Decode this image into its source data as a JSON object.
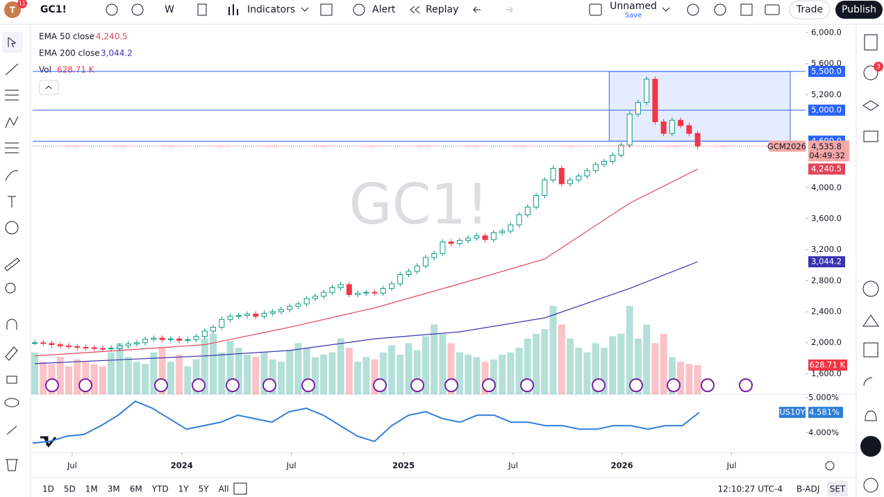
{
  "toolbar": {
    "avatar_badge": "11",
    "symbol": "GC1!",
    "interval": "W",
    "indicators": "Indicators",
    "alert": "Alert",
    "replay": "Replay",
    "layout_name": "Unnamed",
    "save": "Save",
    "trade": "Trade",
    "publish": "Publish"
  },
  "watermark": "GC1!",
  "side_badge": "3",
  "chart": {
    "type": "candlestick",
    "closes": [
      2000,
      1990,
      1975,
      1960,
      1950,
      1940,
      1935,
      1925,
      1920,
      1930,
      1960,
      1985,
      2000,
      2045,
      2060,
      2040,
      2050,
      2030,
      2040,
      2080,
      2150,
      2200,
      2300,
      2340,
      2350,
      2370,
      2340,
      2380,
      2400,
      2430,
      2470,
      2500,
      2570,
      2600,
      2650,
      2710,
      2750,
      2620,
      2640,
      2650,
      2640,
      2700,
      2760,
      2880,
      2920,
      2990,
      3100,
      3150,
      3300,
      3280,
      3320,
      3350,
      3380,
      3330,
      3420,
      3440,
      3520,
      3650,
      3750,
      3900,
      4100,
      4250,
      4050,
      4100,
      4150,
      4220,
      4300,
      4340,
      4420,
      4550,
      4950,
      5100,
      5400,
      4850,
      4700,
      4870,
      4800,
      4700,
      4535.8
    ],
    "volume": [
      900,
      700,
      650,
      800,
      600,
      750,
      700,
      650,
      600,
      900,
      1100,
      800,
      700,
      650,
      900,
      1000,
      700,
      850,
      600,
      750,
      1200,
      1300,
      900,
      1150,
      1000,
      850,
      800,
      900,
      750,
      700,
      950,
      1100,
      1000,
      800,
      850,
      900,
      1200,
      1000,
      700,
      800,
      750,
      900,
      1050,
      850,
      1100,
      950,
      1250,
      1500,
      1300,
      1100,
      900,
      850,
      800,
      700,
      750,
      850,
      900,
      1000,
      1200,
      1300,
      1400,
      1900,
      1500,
      1200,
      1000,
      900,
      1100,
      1000,
      1250,
      1300,
      1900,
      1200,
      1500,
      1100,
      1300,
      800,
      700,
      650,
      628.71
    ],
    "volume_name": "Vol",
    "volume_label": "628.71 K",
    "up_color": "#089981",
    "down_color": "#f23645",
    "xlim": [
      -0.25,
      90.7
    ],
    "xticks": [
      {
        "value": 4.4,
        "label": "Jul"
      },
      {
        "value": 17.3,
        "label": "2024"
      },
      {
        "value": 30.2,
        "label": "Jul"
      },
      {
        "value": 43.4,
        "label": "2025"
      },
      {
        "value": 56.3,
        "label": "Jul"
      },
      {
        "value": 69.1,
        "label": "2026"
      },
      {
        "value": 82,
        "label": "Jul"
      }
    ],
    "ylim": [
      1335,
      6063
    ],
    "yticks": [
      {
        "value": 6000,
        "label": "6,000.0"
      },
      {
        "value": 5600,
        "label": "5,600.0"
      },
      {
        "value": 5200,
        "label": "5,200.0"
      },
      {
        "value": 4000,
        "label": "4,000.0"
      },
      {
        "value": 3600,
        "label": "3,600.0"
      },
      {
        "value": 3200,
        "label": "3,200.0"
      },
      {
        "value": 2800,
        "label": "2,800.0"
      },
      {
        "value": 2400,
        "label": "2,400.0"
      },
      {
        "value": 2000,
        "label": "2,000.0"
      },
      {
        "value": 1600,
        "label": "1,600.0"
      }
    ],
    "series": [
      {
        "name": "EMA 50 close",
        "color": "#e0455a",
        "label": "4,240.5",
        "x": [
          0,
          10,
          20,
          30,
          40,
          50,
          60,
          70,
          78
        ],
        "values": [
          1830,
          1900,
          1975,
          2200,
          2450,
          2760,
          3080,
          3800,
          4240.5
        ]
      },
      {
        "name": "EMA 200 close",
        "color": "#3a33b0",
        "label": "3,044.2",
        "x": [
          0,
          10,
          20,
          30,
          40,
          50,
          60,
          70,
          78
        ],
        "values": [
          1730,
          1780,
          1830,
          1900,
          2050,
          2140,
          2320,
          2700,
          3044.2
        ]
      }
    ],
    "hlines": [
      {
        "value": 5500,
        "label": "5,500.0"
      },
      {
        "value": 5000,
        "label": "5,000.0"
      },
      {
        "value": 4600,
        "label": "4,600.0"
      }
    ],
    "rectangle": {
      "xlim": [
        67.6,
        88.9
      ],
      "ylim": [
        4600,
        5500
      ]
    },
    "last_price": {
      "symbol": "GCM2026",
      "value": 4535.8,
      "label": "4,535.8",
      "countdown": "04:49:32"
    },
    "us10y": {
      "name": "US10Y",
      "label": "4.581%",
      "color": "#2f7ed8",
      "ylim": [
        3.43,
        5.1
      ],
      "yticks": [
        {
          "value": 5,
          "label": "5.000%"
        },
        {
          "value": 4,
          "label": "4.000%"
        }
      ],
      "values": [
        3.7,
        3.75,
        3.9,
        3.95,
        4.2,
        4.5,
        4.9,
        4.7,
        4.4,
        4.1,
        4.2,
        4.3,
        4.5,
        4.4,
        4.3,
        4.6,
        4.7,
        4.5,
        4.2,
        3.9,
        3.75,
        4.2,
        4.5,
        4.6,
        4.4,
        4.3,
        4.5,
        4.5,
        4.3,
        4.3,
        4.2,
        4.2,
        4.1,
        4.1,
        4.2,
        4.2,
        4.1,
        4.2,
        4.2,
        4.581
      ]
    }
  },
  "bottom_bar": {
    "ranges": [
      "1D",
      "5D",
      "1M",
      "3M",
      "6M",
      "YTD",
      "1Y",
      "5Y",
      "All"
    ],
    "clock": "12:10:27 UTC-4",
    "adj": "B-ADJ",
    "session": "SET"
  }
}
